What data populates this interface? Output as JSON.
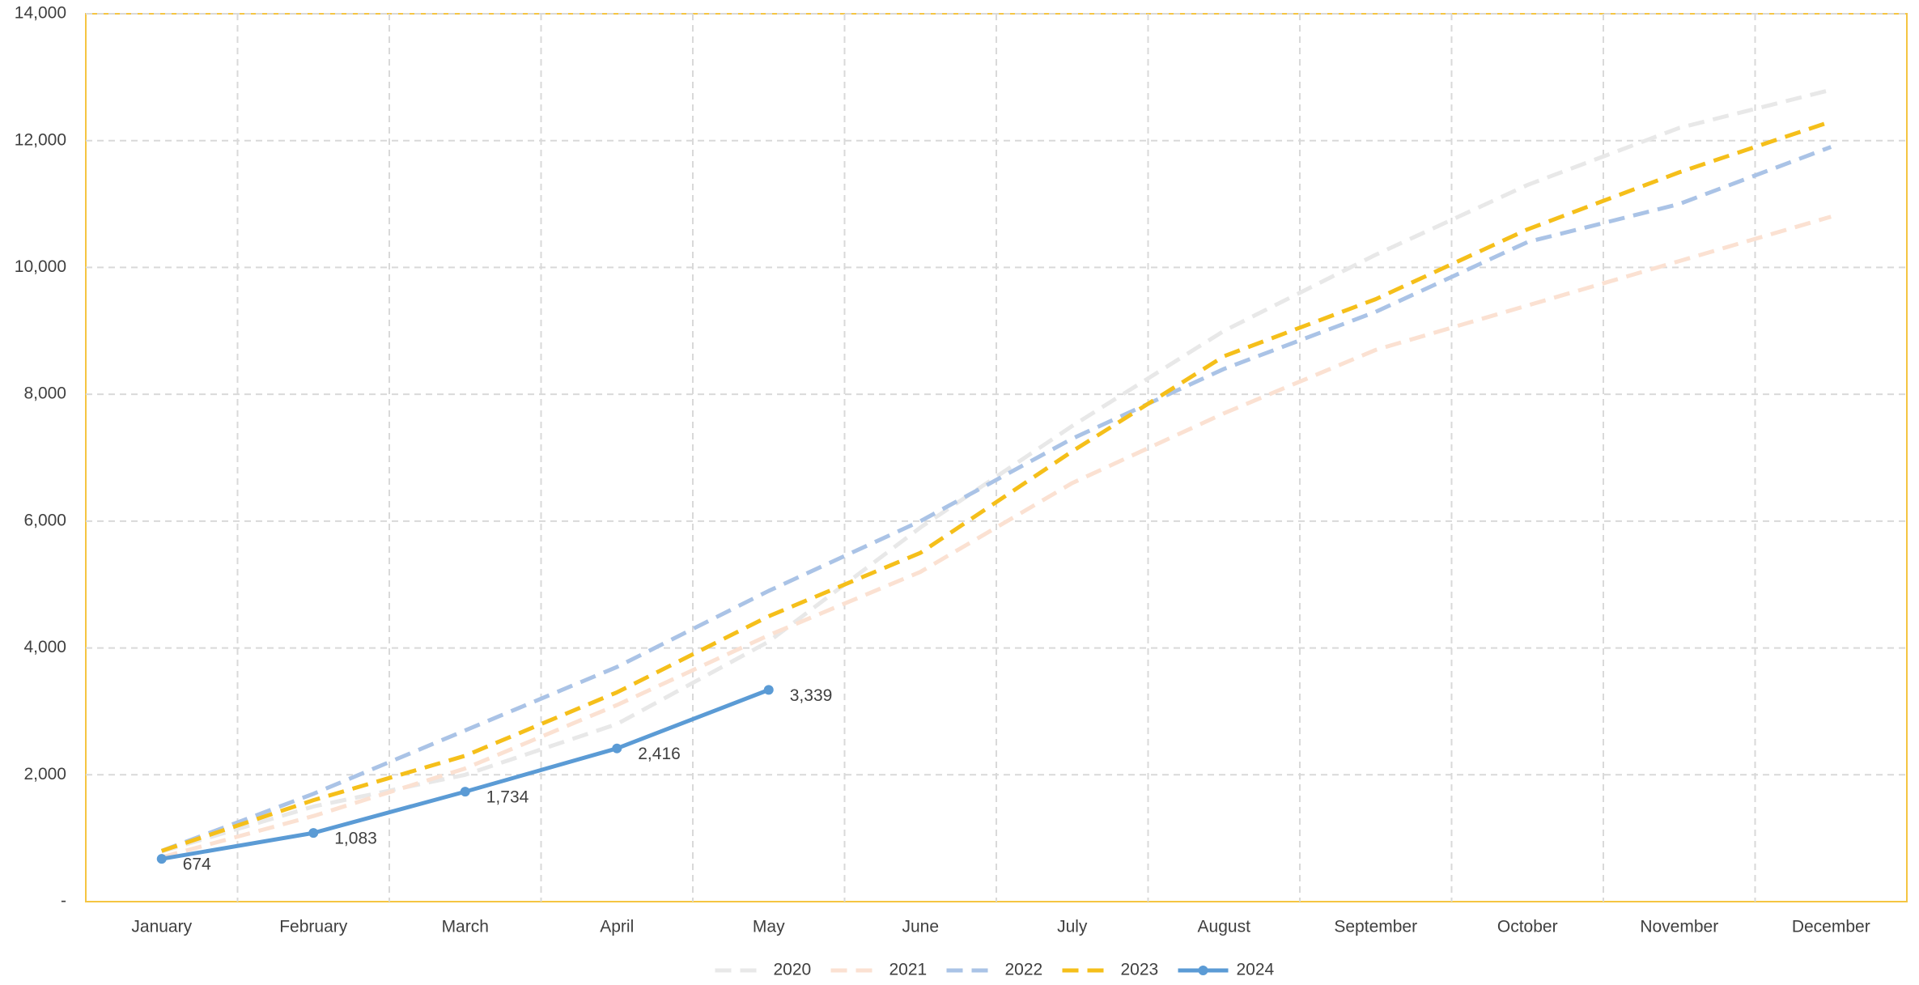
{
  "chart_data": {
    "type": "line",
    "categories": [
      "January",
      "February",
      "March",
      "April",
      "May",
      "June",
      "July",
      "August",
      "September",
      "October",
      "November",
      "December"
    ],
    "series": [
      {
        "name": "2020",
        "color": "#e8e8e8",
        "dashed": true,
        "values": [
          790,
          1500,
          2000,
          2800,
          4100,
          5900,
          7500,
          9000,
          10200,
          11300,
          12200,
          12800
        ]
      },
      {
        "name": "2021",
        "color": "#fbe1d2",
        "dashed": true,
        "values": [
          700,
          1350,
          2100,
          3100,
          4200,
          5200,
          6600,
          7700,
          8700,
          9400,
          10100,
          10800
        ]
      },
      {
        "name": "2022",
        "color": "#aac3e6",
        "dashed": true,
        "values": [
          800,
          1700,
          2700,
          3700,
          4900,
          6000,
          7300,
          8400,
          9300,
          10400,
          11000,
          11900
        ]
      },
      {
        "name": "2023",
        "color": "#f5bf1a",
        "dashed": true,
        "values": [
          800,
          1600,
          2300,
          3300,
          4500,
          5500,
          7100,
          8600,
          9500,
          10600,
          11500,
          12300
        ]
      },
      {
        "name": "2024",
        "color": "#5b9bd5",
        "dashed": false,
        "markers": true,
        "values": [
          674,
          1083,
          1734,
          2416,
          3339,
          null,
          null,
          null,
          null,
          null,
          null,
          null
        ],
        "value_labels": [
          "674",
          "1,083",
          "1,734",
          "2,416",
          "3,339",
          null,
          null,
          null,
          null,
          null,
          null,
          null
        ]
      }
    ],
    "ylim": [
      0,
      14000
    ],
    "yticks": [
      {
        "value": 0,
        "label": "-"
      },
      {
        "value": 2000,
        "label": "2,000"
      },
      {
        "value": 4000,
        "label": "4,000"
      },
      {
        "value": 6000,
        "label": "6,000"
      },
      {
        "value": 8000,
        "label": "8,000"
      },
      {
        "value": 10000,
        "label": "10,000"
      },
      {
        "value": 12000,
        "label": "12,000"
      },
      {
        "value": 14000,
        "label": "14,000"
      }
    ],
    "grid": true,
    "legend": "bottom"
  }
}
